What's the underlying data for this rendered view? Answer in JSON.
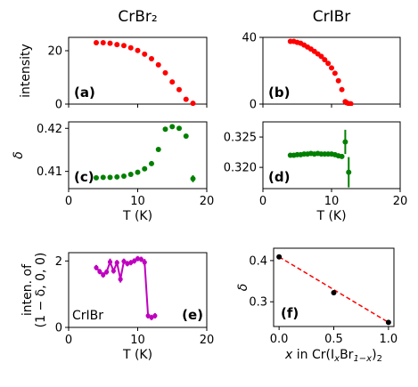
{
  "chart_data": [
    {
      "id": "a",
      "type": "scatter",
      "title": "CrBr₂",
      "panel_label": "(a)",
      "ylabel": "intensity",
      "xlabel": "",
      "xlim": [
        0,
        20
      ],
      "ylim": [
        0,
        25
      ],
      "xticks": [
        0,
        10,
        20
      ],
      "yticks": [
        0,
        20
      ],
      "xtick_labels": [
        "",
        "",
        ""
      ],
      "ytick_labels": [
        "0",
        "20"
      ],
      "marker": "circle",
      "color": "#ff0000",
      "line": false,
      "x": [
        4,
        5,
        6,
        7,
        8,
        9,
        10,
        11,
        12,
        13,
        14,
        15,
        16,
        17,
        18
      ],
      "y": [
        23.0,
        23.0,
        22.8,
        22.3,
        21.9,
        21.1,
        20.1,
        18.7,
        17.0,
        14.7,
        11.7,
        8.3,
        5.4,
        1.8,
        0.3
      ]
    },
    {
      "id": "b",
      "type": "scatter",
      "title": "CrIBr",
      "panel_label": "(b)",
      "ylabel": "",
      "xlabel": "",
      "xlim": [
        0,
        20
      ],
      "ylim": [
        0,
        40
      ],
      "xticks": [
        0,
        10,
        20
      ],
      "yticks": [
        0,
        40
      ],
      "xtick_labels": [
        "",
        "",
        ""
      ],
      "ytick_labels": [
        "0",
        "40"
      ],
      "marker": "circle",
      "color": "#ff0000",
      "line": false,
      "x": [
        4,
        4.5,
        5,
        5.5,
        6,
        6.5,
        7,
        7.5,
        8,
        8.5,
        9,
        9.5,
        10,
        10.5,
        11,
        11.5,
        12,
        12.2,
        12.5,
        12.8
      ],
      "y": [
        37.6,
        37.6,
        37.0,
        36.5,
        35.4,
        34.2,
        33.0,
        31.6,
        30.1,
        28.6,
        26.6,
        24.4,
        21.7,
        18.5,
        14.0,
        8.7,
        1.5,
        0.8,
        0.3,
        0.2
      ]
    },
    {
      "id": "c",
      "type": "scatter",
      "panel_label": "(c)",
      "ylabel": "δ",
      "xlabel": "T (K)",
      "xlim": [
        0,
        20
      ],
      "ylim": [
        0.406,
        0.4215
      ],
      "xticks": [
        0,
        10,
        20
      ],
      "yticks": [
        0.41,
        0.42
      ],
      "xtick_labels": [
        "0",
        "10",
        "20"
      ],
      "ytick_labels": [
        "0.41",
        "0.42"
      ],
      "marker": "circle",
      "color": "#008000",
      "line": false,
      "x": [
        4,
        5,
        6,
        7,
        8,
        9,
        10,
        11,
        12,
        13,
        14,
        15,
        16,
        17,
        18
      ],
      "y": [
        0.4085,
        0.4086,
        0.4086,
        0.4087,
        0.4089,
        0.4093,
        0.4098,
        0.4106,
        0.4118,
        0.4151,
        0.4198,
        0.4204,
        0.42,
        0.4182,
        0.4083
      ],
      "yerr": [
        0,
        0,
        0,
        0,
        0,
        0,
        0,
        0,
        0,
        0,
        0,
        0,
        0,
        0,
        0.0008
      ]
    },
    {
      "id": "d",
      "type": "scatter",
      "panel_label": "(d)",
      "ylabel": "",
      "xlabel": "T (K)",
      "xlim": [
        0,
        20
      ],
      "ylim": [
        0.3165,
        0.3275
      ],
      "xticks": [
        0,
        10,
        20
      ],
      "yticks": [
        0.32,
        0.325
      ],
      "xtick_labels": [
        "0",
        "10",
        "20"
      ],
      "ytick_labels": [
        "0.320",
        "0.325"
      ],
      "marker": "circle",
      "color": "#008000",
      "line": false,
      "x": [
        4,
        4.5,
        5,
        5.5,
        6,
        6.5,
        7,
        7.5,
        8,
        8.5,
        9,
        9.5,
        10,
        10.5,
        11,
        11.5,
        12,
        12.5
      ],
      "y": [
        0.322,
        0.322,
        0.3221,
        0.3221,
        0.3222,
        0.3222,
        0.3223,
        0.3222,
        0.3223,
        0.3222,
        0.3222,
        0.3222,
        0.3222,
        0.3221,
        0.3219,
        0.3218,
        0.3242,
        0.3192
      ],
      "yerr": [
        0,
        0,
        0,
        0,
        0,
        0,
        0,
        0,
        0,
        0,
        0,
        0,
        0,
        0,
        0,
        0,
        0.002,
        0.0025
      ]
    },
    {
      "id": "e",
      "type": "line",
      "panel_label": "(e)",
      "annotation": "CrIBr",
      "ylabel": "inten. of",
      "ylabel2": "(1 − δ, 0, 0)",
      "xlabel": "T (K)",
      "xlim": [
        0,
        20
      ],
      "ylim": [
        0,
        2.25
      ],
      "xticks": [
        0,
        10,
        20
      ],
      "yticks": [
        0,
        2
      ],
      "xtick_labels": [
        "0",
        "10",
        "20"
      ],
      "ytick_labels": [
        "0",
        "2"
      ],
      "marker": "circle",
      "color": "#bf00bf",
      "line": true,
      "x": [
        4,
        4.5,
        5,
        5.5,
        6,
        6.5,
        7,
        7.5,
        8,
        8.5,
        9,
        9.5,
        10,
        10.5,
        11,
        11.5,
        12,
        12.5
      ],
      "y": [
        1.8,
        1.68,
        1.58,
        1.67,
        1.97,
        1.7,
        1.95,
        1.45,
        1.99,
        1.92,
        1.95,
        2.0,
        2.07,
        2.05,
        1.96,
        0.35,
        0.3,
        0.35
      ],
      "yerr": [
        0.08,
        0.08,
        0.08,
        0.08,
        0.1,
        0.08,
        0.08,
        0.1,
        0.08,
        0.08,
        0.08,
        0.08,
        0.08,
        0.08,
        0.1,
        0.08,
        0.08,
        0.08
      ]
    },
    {
      "id": "f",
      "type": "scatter",
      "panel_label": "(f)",
      "ylabel": "δ",
      "xlabel_pre": "x",
      "xlabel_mid": " in Cr(I",
      "xlabel_sub1": "x",
      "xlabel_mid2": "Br",
      "xlabel_sub2": "1−x",
      "xlabel_end": ")",
      "xlabel_sub3": "2",
      "xlim": [
        -0.05,
        1.05
      ],
      "ylim": [
        0.24,
        0.43
      ],
      "xticks": [
        0,
        0.5,
        1
      ],
      "yticks": [
        0.3,
        0.4
      ],
      "xtick_labels": [
        "0.0",
        "0.5",
        "1.0"
      ],
      "ytick_labels": [
        "0.3",
        "0.4"
      ],
      "marker": "circle",
      "color": "#000000",
      "line": false,
      "fit_line_color": "#ff0000",
      "x": [
        0,
        0.5,
        1
      ],
      "y": [
        0.409,
        0.322,
        0.25
      ]
    }
  ]
}
